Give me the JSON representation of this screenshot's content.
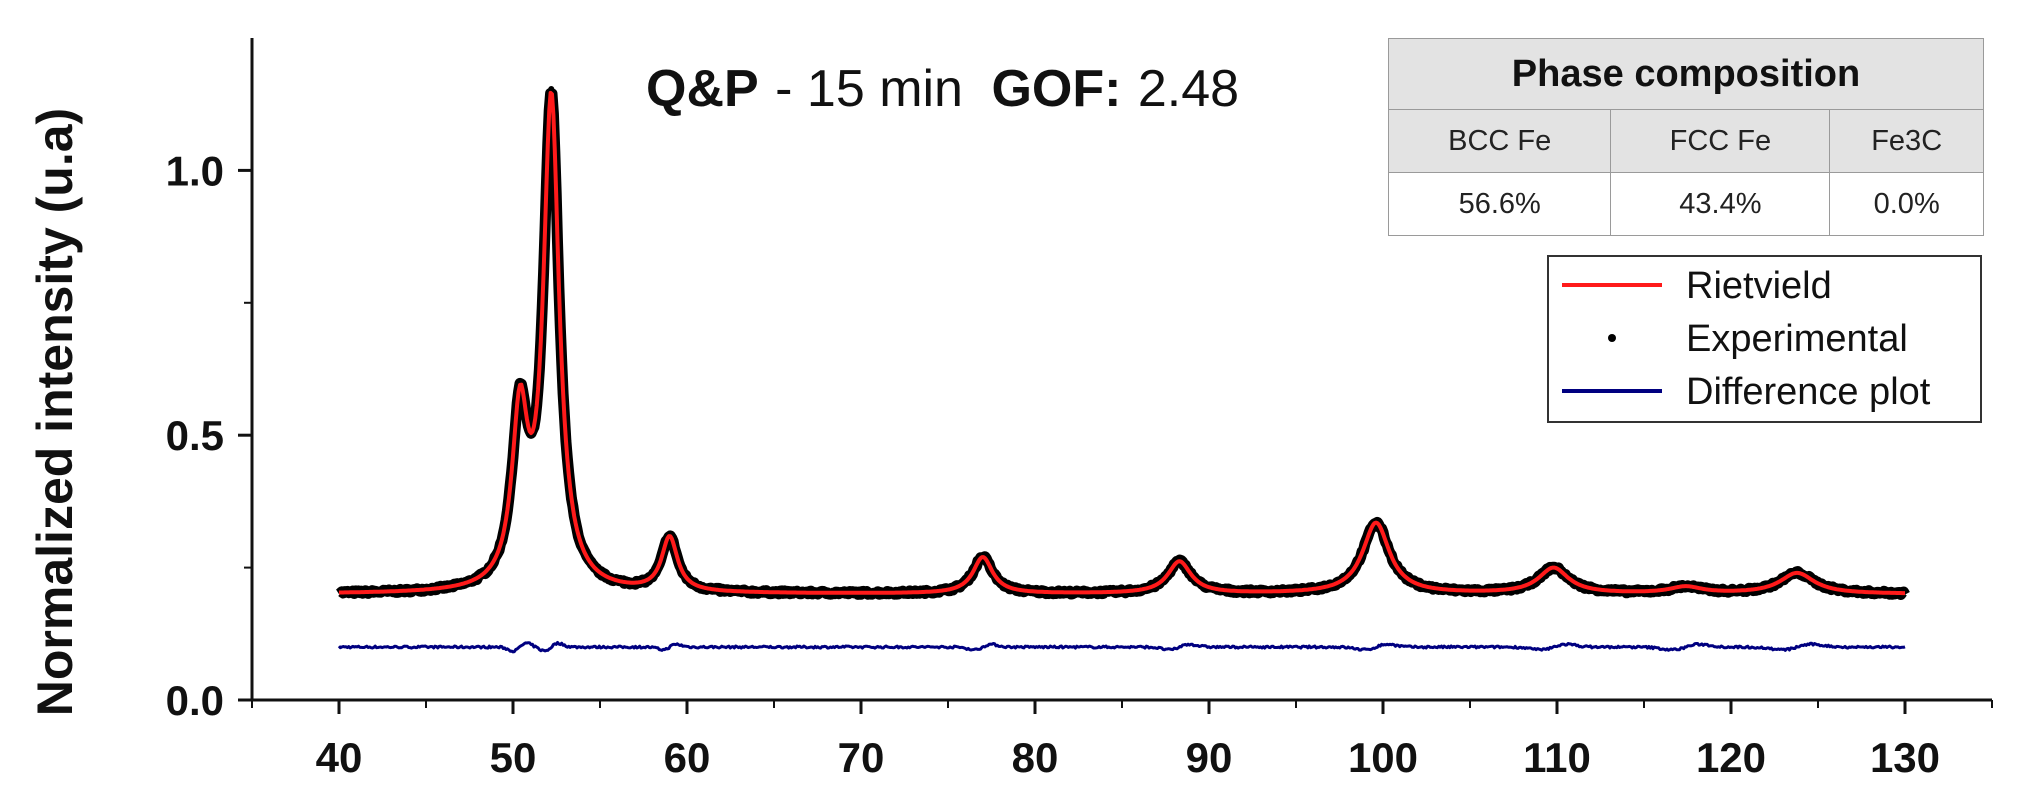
{
  "chart_data": {
    "type": "line",
    "title": {
      "sample_label": "Q&P",
      "sample_detail": "- 15 min",
      "gof_label": "GOF:",
      "gof_value": "2.48"
    },
    "xlabel": "",
    "ylabel": "Normalized intensity (u.a)",
    "xlim": [
      35,
      135
    ],
    "ylim": [
      0,
      1.25
    ],
    "x_ticks": [
      40,
      50,
      60,
      70,
      80,
      90,
      100,
      110,
      120,
      130
    ],
    "y_ticks": [
      "0.0",
      "0.5",
      "1.0"
    ],
    "grid": false,
    "baseline": 0.2,
    "difference_baseline": 0.1,
    "peaks": [
      {
        "x": 50.4,
        "y": 0.595
      },
      {
        "x": 52.2,
        "y": 1.15
      },
      {
        "x": 59.0,
        "y": 0.31
      },
      {
        "x": 77.0,
        "y": 0.27
      },
      {
        "x": 88.3,
        "y": 0.262
      },
      {
        "x": 99.6,
        "y": 0.335
      },
      {
        "x": 109.8,
        "y": 0.25
      },
      {
        "x": 117.4,
        "y": 0.215
      },
      {
        "x": 123.8,
        "y": 0.24
      }
    ],
    "series": [
      {
        "name": "Rietvield",
        "style": "line",
        "color": "#ff1a1a"
      },
      {
        "name": "Experimental",
        "style": "points",
        "color": "#000000"
      },
      {
        "name": "Difference plot",
        "style": "line",
        "color": "#000080"
      }
    ],
    "legend_position": "top-right"
  },
  "phase_table": {
    "title": "Phase composition",
    "columns": [
      "BCC Fe",
      "FCC Fe",
      "Fe3C"
    ],
    "values": [
      "56.6%",
      "43.4%",
      "0.0%"
    ]
  }
}
